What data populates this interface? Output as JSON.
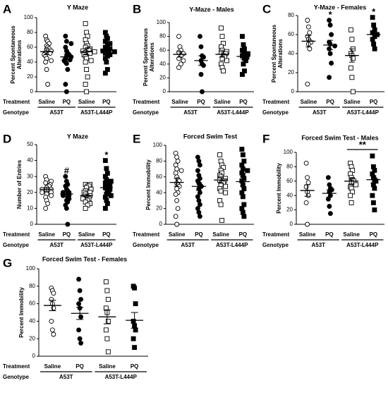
{
  "chart_data": [
    {
      "type": "dotplot",
      "panel": "A",
      "title": "Y Maze",
      "ylabel": [
        "Percent Spontaneous",
        "Alterations"
      ],
      "ylim": [
        0,
        100
      ],
      "yticks": [
        0,
        20,
        40,
        60,
        80,
        100
      ],
      "row_labels": [
        "Treatment",
        "Genotype"
      ],
      "categories": [
        "Saline",
        "PQ",
        "Saline",
        "PQ"
      ],
      "genotypes": [
        "A53T",
        "A53T-L444P"
      ],
      "groups": [
        {
          "marker": "circle",
          "filled": false,
          "mean": 54,
          "sem": 4,
          "values": [
            75,
            70,
            68,
            65,
            62,
            60,
            58,
            57,
            55,
            53,
            52,
            50,
            48,
            45,
            42,
            40,
            30,
            10
          ]
        },
        {
          "marker": "circle",
          "filled": true,
          "mean": 47,
          "sem": 4,
          "values": [
            75,
            68,
            65,
            60,
            55,
            52,
            50,
            48,
            47,
            45,
            43,
            42,
            40,
            38,
            30,
            10,
            0
          ]
        },
        {
          "marker": "square",
          "filled": false,
          "mean": 54,
          "sem": 4,
          "values": [
            92,
            80,
            75,
            70,
            65,
            62,
            60,
            58,
            57,
            56,
            55,
            54,
            53,
            52,
            50,
            48,
            45,
            42,
            40,
            30,
            20,
            10,
            0
          ]
        },
        {
          "marker": "square",
          "filled": true,
          "mean": 56,
          "sem": 3,
          "values": [
            80,
            75,
            72,
            68,
            65,
            62,
            60,
            58,
            57,
            56,
            55,
            54,
            52,
            50,
            48,
            45,
            40,
            30,
            25
          ]
        }
      ]
    },
    {
      "type": "dotplot",
      "panel": "B",
      "title": "Y-Maze - Males",
      "ylabel": [
        "Percent Spontaneous",
        "Alterations"
      ],
      "ylim": [
        0,
        100
      ],
      "yticks": [
        0,
        20,
        40,
        60,
        80,
        100
      ],
      "row_labels": [
        "Treatment",
        "Genotype"
      ],
      "categories": [
        "Saline",
        "PQ",
        "Saline",
        "PQ"
      ],
      "genotypes": [
        "A53T",
        "A53T-L444P"
      ],
      "groups": [
        {
          "marker": "circle",
          "filled": false,
          "mean": 54,
          "sem": 4,
          "values": [
            80,
            65,
            60,
            57,
            55,
            52,
            48,
            45,
            40,
            35
          ]
        },
        {
          "marker": "circle",
          "filled": true,
          "mean": 45,
          "sem": 7,
          "values": [
            80,
            65,
            52,
            50,
            45,
            40,
            38,
            25,
            0
          ]
        },
        {
          "marker": "square",
          "filled": false,
          "mean": 54,
          "sem": 4,
          "values": [
            92,
            80,
            70,
            65,
            60,
            58,
            57,
            55,
            52,
            50,
            48,
            45,
            40,
            35,
            30
          ]
        },
        {
          "marker": "square",
          "filled": true,
          "mean": 51,
          "sem": 4,
          "values": [
            80,
            68,
            62,
            60,
            57,
            55,
            52,
            50,
            48,
            45,
            40,
            30,
            25
          ]
        }
      ]
    },
    {
      "type": "dotplot",
      "panel": "C",
      "title": "Y-Maze - Females",
      "ylabel": [
        "Percent Spontaneous",
        "Alterations"
      ],
      "ylim": [
        0,
        80
      ],
      "yticks": [
        0,
        20,
        40,
        60,
        80
      ],
      "row_labels": [
        "Treatment",
        "Genotype"
      ],
      "categories": [
        "Saline",
        "PQ",
        "Saline",
        "PQ"
      ],
      "genotypes": [
        "A53T",
        "A53T-L444P"
      ],
      "groups": [
        {
          "marker": "circle",
          "filled": false,
          "mean": 53,
          "sem": 6,
          "values": [
            75,
            68,
            62,
            58,
            55,
            53,
            52,
            50,
            45,
            8
          ]
        },
        {
          "marker": "circle",
          "filled": true,
          "mean": 49,
          "sem": 5,
          "values": [
            75,
            70,
            60,
            52,
            50,
            48,
            45,
            40,
            30,
            15
          ],
          "annotation": "*"
        },
        {
          "marker": "square",
          "filled": false,
          "mean": 38,
          "sem": 7,
          "values": [
            65,
            55,
            45,
            40,
            38,
            35,
            25,
            15,
            0
          ]
        },
        {
          "marker": "square",
          "filled": true,
          "mean": 60,
          "sem": 4,
          "values": [
            78,
            70,
            65,
            62,
            60,
            58,
            55,
            50,
            45
          ],
          "annotation": "*"
        }
      ]
    },
    {
      "type": "dotplot",
      "panel": "D",
      "title": "Y Maze",
      "ylabel": [
        "Number of Entries"
      ],
      "ylim": [
        0,
        50
      ],
      "yticks": [
        0,
        10,
        20,
        30,
        40,
        50
      ],
      "row_labels": [
        "Treatment",
        "Genotype"
      ],
      "categories": [
        "Saline",
        "PQ",
        "Saline",
        "PQ"
      ],
      "genotypes": [
        "A53T",
        "A53T-L444P"
      ],
      "groups": [
        {
          "marker": "circle",
          "filled": false,
          "mean": 22,
          "sem": 1.2,
          "values": [
            30,
            28,
            27,
            26,
            25,
            24,
            24,
            23,
            22,
            22,
            21,
            20,
            20,
            19,
            18,
            17,
            15,
            13,
            10
          ]
        },
        {
          "marker": "circle",
          "filled": true,
          "mean": 19,
          "sem": 1.5,
          "values": [
            30,
            27,
            25,
            24,
            22,
            21,
            20,
            20,
            19,
            18,
            18,
            17,
            16,
            15,
            14,
            12,
            10,
            0
          ],
          "annotation": "#"
        },
        {
          "marker": "square",
          "filled": false,
          "mean": 18,
          "sem": 1,
          "values": [
            25,
            25,
            24,
            24,
            23,
            22,
            21,
            20,
            20,
            19,
            18,
            17,
            16,
            16,
            15,
            14,
            13,
            12,
            10
          ]
        },
        {
          "marker": "square",
          "filled": true,
          "mean": 23,
          "sem": 1.6,
          "values": [
            40,
            35,
            32,
            30,
            28,
            27,
            26,
            25,
            24,
            23,
            22,
            21,
            20,
            19,
            18,
            17,
            15,
            13,
            10
          ],
          "annotation": "*"
        }
      ]
    },
    {
      "type": "dotplot",
      "panel": "E",
      "title": "Forced Swim Test",
      "ylabel": [
        "Percent Immobility"
      ],
      "ylim": [
        0,
        100
      ],
      "yticks": [
        0,
        20,
        40,
        60,
        80,
        100
      ],
      "row_labels": [
        "Treatment",
        "Genotype"
      ],
      "categories": [
        "Saline",
        "PQ",
        "Saline",
        "PQ"
      ],
      "genotypes": [
        "A53T",
        "A53T-L444P"
      ],
      "groups": [
        {
          "marker": "circle",
          "filled": false,
          "mean": 53,
          "sem": 5,
          "values": [
            90,
            85,
            80,
            75,
            70,
            68,
            65,
            60,
            57,
            55,
            52,
            50,
            48,
            45,
            40,
            38,
            30,
            20,
            10,
            0
          ]
        },
        {
          "marker": "circle",
          "filled": true,
          "mean": 48,
          "sem": 5,
          "values": [
            85,
            80,
            75,
            68,
            62,
            58,
            55,
            52,
            50,
            48,
            45,
            40,
            35,
            30,
            25,
            20,
            15,
            10
          ]
        },
        {
          "marker": "square",
          "filled": false,
          "mean": 56,
          "sem": 4,
          "values": [
            88,
            80,
            75,
            72,
            68,
            65,
            62,
            60,
            58,
            56,
            55,
            53,
            52,
            50,
            48,
            45,
            42,
            40,
            30,
            25,
            5
          ]
        },
        {
          "marker": "square",
          "filled": true,
          "mean": 54,
          "sem": 6,
          "values": [
            95,
            88,
            80,
            75,
            70,
            68,
            65,
            62,
            58,
            55,
            50,
            45,
            40,
            35,
            25,
            20,
            15,
            10
          ]
        }
      ]
    },
    {
      "type": "dotplot",
      "panel": "F",
      "title": "Forced Swim Test - Males",
      "ylabel": [
        "Percent Immobility"
      ],
      "ylim": [
        0,
        100
      ],
      "yticks": [
        0,
        20,
        40,
        60,
        80,
        100
      ],
      "row_labels": [
        "Treatment",
        "Genotype"
      ],
      "categories": [
        "Saline",
        "PQ",
        "Saline",
        "PQ"
      ],
      "genotypes": [
        "A53T",
        "A53T-L444P"
      ],
      "bracket_label": "**",
      "groups": [
        {
          "marker": "circle",
          "filled": false,
          "mean": 47,
          "sem": 8,
          "values": [
            85,
            65,
            58,
            52,
            45,
            40,
            30,
            0
          ]
        },
        {
          "marker": "circle",
          "filled": true,
          "mean": 43,
          "sem": 5,
          "values": [
            65,
            55,
            50,
            48,
            45,
            40,
            35,
            25,
            15
          ]
        },
        {
          "marker": "square",
          "filled": false,
          "mean": 60,
          "sem": 4,
          "values": [
            85,
            80,
            75,
            70,
            65,
            62,
            60,
            58,
            55,
            52,
            50,
            45,
            40,
            30
          ]
        },
        {
          "marker": "square",
          "filled": true,
          "mean": 62,
          "sem": 5,
          "values": [
            95,
            80,
            75,
            70,
            65,
            62,
            60,
            55,
            50,
            40,
            30,
            20
          ]
        }
      ]
    },
    {
      "type": "dotplot",
      "panel": "G",
      "title": "Forced Swim Test - Females",
      "ylabel": [
        "Percent Immobility"
      ],
      "ylim": [
        0,
        100
      ],
      "yticks": [
        0,
        20,
        40,
        60,
        80,
        100
      ],
      "row_labels": [
        "Treatment",
        "Genotype"
      ],
      "categories": [
        "Saline",
        "PQ",
        "Saline",
        "PQ"
      ],
      "genotypes": [
        "A53T",
        "A53T-L444P"
      ],
      "groups": [
        {
          "marker": "circle",
          "filled": false,
          "mean": 58,
          "sem": 6,
          "values": [
            78,
            75,
            72,
            65,
            60,
            55,
            40,
            30,
            25
          ]
        },
        {
          "marker": "circle",
          "filled": true,
          "mean": 49,
          "sem": 7,
          "values": [
            88,
            75,
            65,
            60,
            55,
            45,
            30,
            20,
            15
          ]
        },
        {
          "marker": "square",
          "filled": false,
          "mean": 45,
          "sem": 8,
          "values": [
            85,
            75,
            65,
            55,
            50,
            40,
            30,
            20,
            5
          ]
        },
        {
          "marker": "square",
          "filled": true,
          "mean": 41,
          "sem": 9,
          "values": [
            80,
            78,
            60,
            40,
            35,
            30,
            20,
            10
          ]
        }
      ]
    }
  ]
}
